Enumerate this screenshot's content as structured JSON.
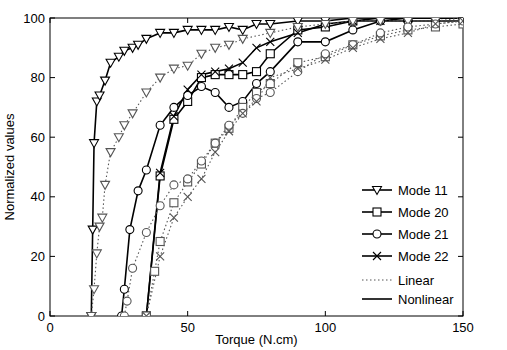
{
  "chart_data": {
    "type": "line",
    "x_label": "Torque (N.cm)",
    "y_label": "Normalized values",
    "xlim": [
      0,
      150
    ],
    "xticks": [
      0,
      50,
      100,
      150
    ],
    "ylim": [
      0,
      100
    ],
    "yticks": [
      0,
      20,
      40,
      60,
      80,
      100
    ],
    "grid": false,
    "legend": "lower right",
    "legend_styles": [
      {
        "label": "Linear",
        "line_style": "dotted",
        "color": "#555555"
      },
      {
        "label": "Nonlinear",
        "line_style": "solid",
        "color": "#000000"
      }
    ],
    "series": [
      {
        "name": "Mode 11",
        "marker": "triangle_down",
        "line_style": "solid",
        "color": "#000000",
        "x": [
          15,
          15.5,
          16,
          17,
          18,
          20,
          22,
          25,
          27,
          30,
          32,
          35,
          40,
          45,
          50,
          55,
          60,
          65,
          70,
          75,
          80,
          90,
          100,
          110,
          120,
          130,
          140,
          150
        ],
        "values": [
          0,
          29,
          58,
          72,
          74,
          79,
          85,
          87,
          89,
          90,
          91,
          93,
          95,
          95,
          96,
          96,
          96,
          97,
          96,
          98,
          98,
          99,
          99,
          100,
          100,
          100,
          100,
          100
        ]
      },
      {
        "name": "Mode 20",
        "marker": "square",
        "line_style": "solid",
        "color": "#000000",
        "x": [
          35,
          40,
          45,
          50,
          55,
          60,
          65,
          70,
          75,
          80,
          90,
          100,
          110,
          120,
          130,
          140,
          150
        ],
        "values": [
          0,
          47,
          66,
          72,
          80,
          81,
          81,
          81,
          82,
          88,
          96,
          97,
          99,
          100,
          100,
          100,
          100
        ]
      },
      {
        "name": "Mode 21",
        "marker": "circle",
        "line_style": "solid",
        "color": "#000000",
        "x": [
          26,
          27,
          29,
          32,
          35,
          40,
          45,
          50,
          55,
          60,
          65,
          70,
          75,
          80,
          90,
          100,
          110,
          120,
          130,
          140,
          150
        ],
        "values": [
          0,
          9,
          29,
          42,
          49,
          64,
          70,
          74,
          77,
          75,
          70,
          72,
          78,
          82,
          92,
          92,
          96,
          99,
          99,
          99,
          99
        ]
      },
      {
        "name": "Mode 22",
        "marker": "x",
        "line_style": "solid",
        "color": "#000000",
        "x": [
          35,
          40,
          45,
          50,
          55,
          60,
          65,
          70,
          75,
          80,
          90,
          100,
          110,
          120,
          130,
          140,
          150
        ],
        "values": [
          0,
          48,
          67,
          76,
          81,
          82,
          83,
          85,
          90,
          92,
          95,
          98,
          99,
          99,
          100,
          100,
          100
        ]
      },
      {
        "name": "Mode 11",
        "marker": "triangle_down",
        "line_style": "dotted",
        "color": "#555555",
        "x": [
          15,
          16,
          17,
          18,
          19,
          20,
          22,
          25,
          27,
          30,
          35,
          40,
          45,
          50,
          55,
          60,
          65,
          70,
          80,
          90,
          100,
          110,
          120,
          130,
          140,
          150
        ],
        "values": [
          0,
          9,
          21,
          30,
          33,
          44,
          55,
          60,
          64,
          68,
          75,
          80,
          83,
          84,
          88,
          90,
          91,
          93,
          95,
          97,
          98,
          99,
          99,
          99,
          99,
          100
        ]
      },
      {
        "name": "Mode 20",
        "marker": "square",
        "line_style": "dotted",
        "color": "#555555",
        "x": [
          35,
          38,
          40,
          45,
          50,
          55,
          60,
          65,
          70,
          75,
          80,
          90,
          100,
          110,
          120,
          130,
          140,
          150
        ],
        "values": [
          0,
          15,
          25,
          38,
          45,
          51,
          58,
          63,
          70,
          75,
          78,
          85,
          87,
          91,
          94,
          96,
          97,
          98
        ]
      },
      {
        "name": "Mode 21",
        "marker": "circle",
        "line_style": "dotted",
        "color": "#555555",
        "x": [
          27,
          28,
          30,
          35,
          40,
          45,
          50,
          55,
          60,
          65,
          70,
          75,
          80,
          90,
          100,
          110,
          120,
          130,
          140,
          150
        ],
        "values": [
          0,
          5,
          16,
          28,
          37,
          44,
          46,
          52,
          58,
          64,
          68,
          73,
          75,
          82,
          88,
          91,
          95,
          97,
          98,
          99
        ]
      },
      {
        "name": "Mode 22",
        "marker": "x",
        "line_style": "dotted",
        "color": "#555555",
        "x": [
          35,
          40,
          45,
          50,
          55,
          60,
          65,
          70,
          75,
          80,
          90,
          100,
          110,
          120,
          130,
          140,
          150
        ],
        "values": [
          0,
          20,
          33,
          40,
          46,
          55,
          62,
          68,
          72,
          80,
          83,
          86,
          90,
          93,
          95,
          98,
          99
        ]
      }
    ]
  }
}
